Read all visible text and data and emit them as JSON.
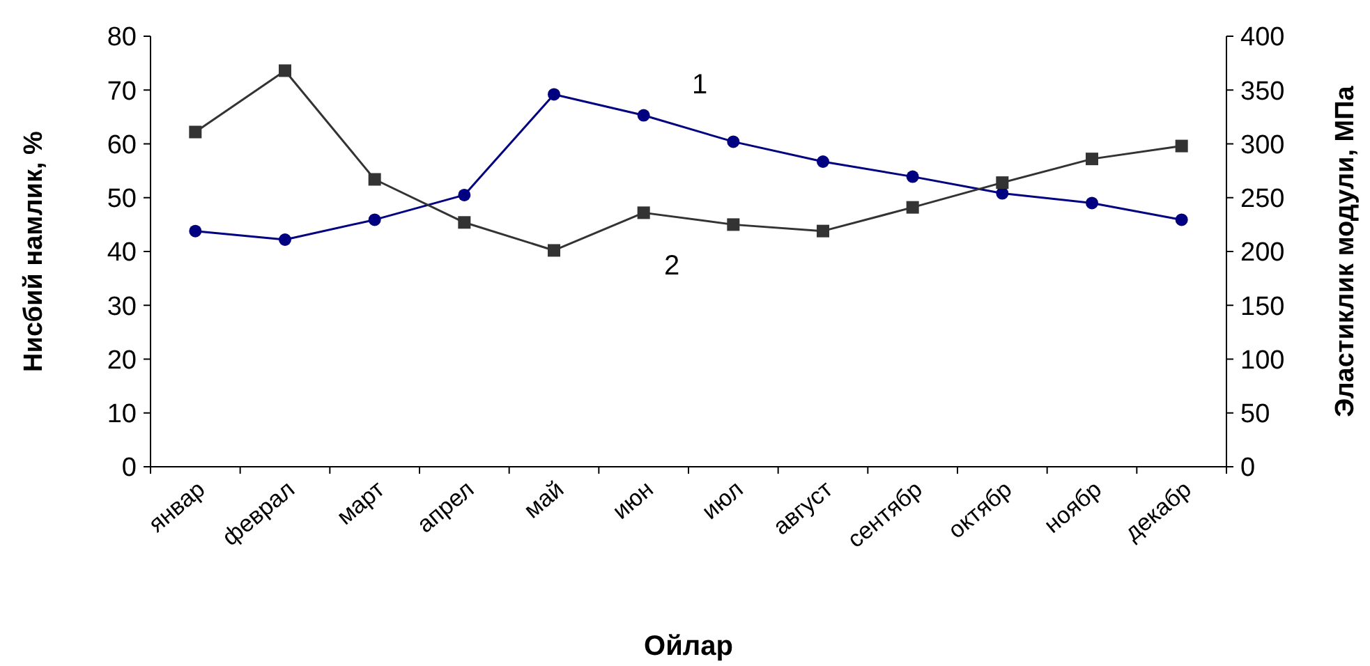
{
  "chart_data": {
    "type": "line",
    "xlabel": "Ойлар",
    "ylabel": "Нисбий намлик, %",
    "y2label": "Эластиклик модули, МПа",
    "categories": [
      "январ",
      "феврал",
      "март",
      "апрел",
      "май",
      "июн",
      "июл",
      "август",
      "сентябр",
      "октябр",
      "ноябр",
      "декабр"
    ],
    "series": [
      {
        "name": "1",
        "color": "#000080",
        "values": [
          43.8,
          42.2,
          45.9,
          50.5,
          69.2,
          65.3,
          60.4,
          56.7,
          53.9,
          50.8,
          49.0,
          45.9
        ],
        "marker": "circle"
      },
      {
        "name": "2",
        "color": "#333333",
        "axis": "y2",
        "values": [
          311,
          368,
          267,
          227,
          201,
          236,
          225,
          219,
          241,
          264,
          286,
          298
        ],
        "marker": "square"
      }
    ],
    "ylim": [
      0,
      80
    ],
    "yticks": [
      0,
      10,
      20,
      30,
      40,
      50,
      60,
      70,
      80
    ],
    "y2lim": [
      0,
      400
    ],
    "y2ticks": [
      0,
      50,
      100,
      150,
      200,
      250,
      300,
      350,
      400
    ],
    "line_style": "solid"
  }
}
